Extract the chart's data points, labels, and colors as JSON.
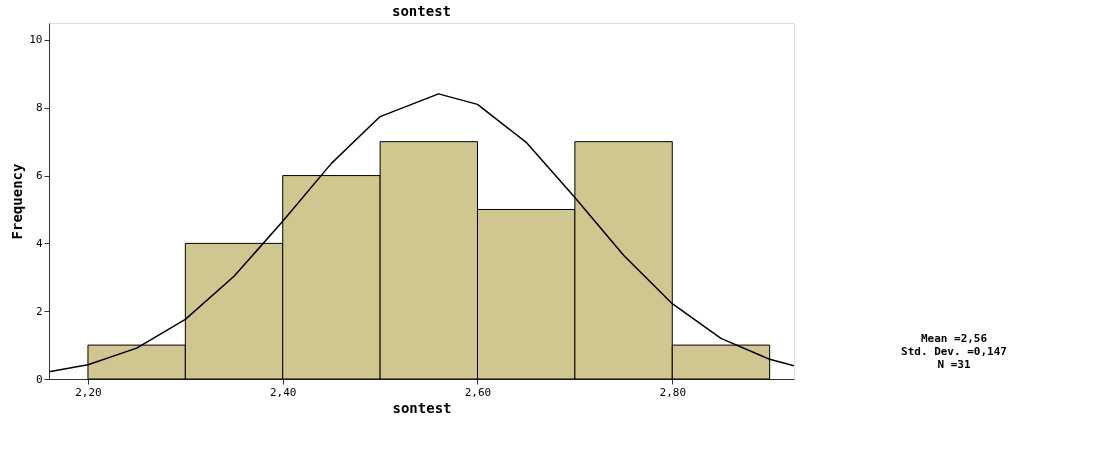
{
  "chart_data": {
    "type": "histogram",
    "title": "sontest",
    "xlabel": "sontest",
    "ylabel": "Frequency",
    "bins": [
      2.2,
      2.3,
      2.4,
      2.5,
      2.6,
      2.7,
      2.8,
      2.9
    ],
    "values": [
      1,
      4,
      6,
      7,
      5,
      7,
      1
    ],
    "color": "#cfc78f",
    "series": [
      {
        "type": "line",
        "color": "#000000",
        "x": [
          2.16,
          2.2,
          2.25,
          2.3,
          2.35,
          2.4,
          2.45,
          2.5,
          2.56,
          2.6,
          2.65,
          2.7,
          2.75,
          2.8,
          2.85,
          2.9,
          2.925
        ],
        "values": [
          0.21,
          0.42,
          0.91,
          1.76,
          3.03,
          4.65,
          6.36,
          7.74,
          8.41,
          8.1,
          6.98,
          5.35,
          3.65,
          2.22,
          1.2,
          0.58,
          0.39
        ]
      }
    ],
    "xlim": [
      2.16,
      2.925
    ],
    "ylim": [
      0,
      10.5
    ],
    "xticks": [
      {
        "value": 2.2,
        "label": "2,20"
      },
      {
        "value": 2.4,
        "label": "2,40"
      },
      {
        "value": 2.6,
        "label": "2,60"
      },
      {
        "value": 2.8,
        "label": "2,80"
      }
    ],
    "yticks": [
      0,
      2,
      4,
      6,
      8,
      10
    ],
    "grid": false,
    "annotations": [
      "Mean =2,56",
      "Std. Dev. =0,147",
      "N =31"
    ]
  }
}
